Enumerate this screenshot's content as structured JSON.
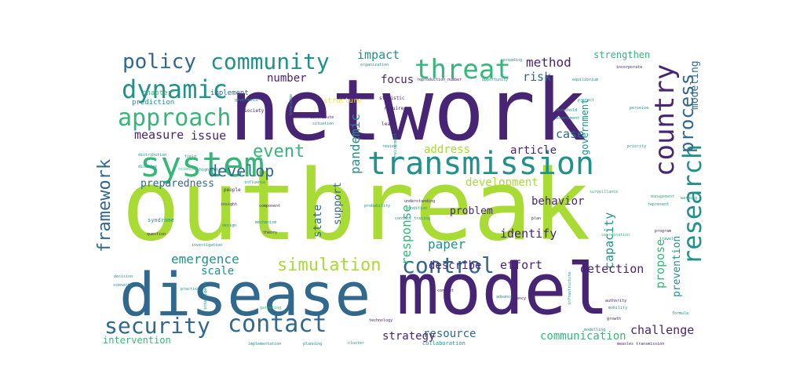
{
  "palette": {
    "dark_purple": "#482475",
    "blue": "#31688e",
    "teal": "#21918c",
    "green": "#35b779",
    "lime": "#a8db34",
    "yellow": "#fde725",
    "indigo": "#443a83"
  },
  "words": [
    {
      "text": "outbreak",
      "color": "lime",
      "level": 1.0
    },
    {
      "text": "network",
      "color": "dark_purple",
      "level": 0.92
    },
    {
      "text": "model",
      "color": "dark_purple",
      "level": 0.88
    },
    {
      "text": "disease",
      "color": "blue",
      "level": 0.8
    },
    {
      "text": "system",
      "color": "green",
      "level": 0.42
    },
    {
      "text": "transmission",
      "color": "teal",
      "level": 0.4
    },
    {
      "text": "threat",
      "color": "green",
      "level": 0.35
    },
    {
      "text": "country",
      "color": "dark_purple",
      "level": 0.34
    },
    {
      "text": "dynamic",
      "color": "teal",
      "level": 0.3
    },
    {
      "text": "community",
      "color": "teal",
      "level": 0.28
    },
    {
      "text": "approach",
      "color": "green",
      "level": 0.27
    },
    {
      "text": "policy",
      "color": "blue",
      "level": 0.25
    },
    {
      "text": "research",
      "color": "teal",
      "level": 0.27
    },
    {
      "text": "contact",
      "color": "blue",
      "level": 0.26
    },
    {
      "text": "security",
      "color": "blue",
      "level": 0.25
    },
    {
      "text": "control",
      "color": "blue",
      "level": 0.24
    },
    {
      "text": "simulation",
      "color": "lime",
      "level": 0.2
    },
    {
      "text": "framework",
      "color": "blue",
      "level": 0.2
    },
    {
      "text": "process",
      "color": "blue",
      "level": 0.2
    },
    {
      "text": "event",
      "color": "green",
      "level": 0.18
    },
    {
      "text": "develop",
      "color": "blue",
      "level": 0.16
    },
    {
      "text": "pandemic",
      "color": "teal",
      "level": 0.13
    },
    {
      "text": "method",
      "color": "dark_purple",
      "level": 0.13
    },
    {
      "text": "impact",
      "color": "teal",
      "level": 0.12
    },
    {
      "text": "risk",
      "color": "blue",
      "level": 0.13
    },
    {
      "text": "modeling",
      "color": "blue",
      "level": 0.11
    },
    {
      "text": "strengthen",
      "color": "green",
      "level": 0.1
    },
    {
      "text": "number",
      "color": "dark_purple",
      "level": 0.1
    },
    {
      "text": "focus",
      "color": "dark_purple",
      "level": 0.11
    },
    {
      "text": "measure",
      "color": "dark_purple",
      "level": 0.11
    },
    {
      "text": "issue",
      "color": "dark_purple",
      "level": 0.11
    },
    {
      "text": "preparedness",
      "color": "blue",
      "level": 0.1
    },
    {
      "text": "emergence",
      "color": "teal",
      "level": 0.12
    },
    {
      "text": "scale",
      "color": "teal",
      "level": 0.1
    },
    {
      "text": "response",
      "color": "green",
      "level": 0.12
    },
    {
      "text": "paper",
      "color": "teal",
      "level": 0.12
    },
    {
      "text": "describe",
      "color": "dark_purple",
      "level": 0.11
    },
    {
      "text": "state",
      "color": "blue",
      "level": 0.1
    },
    {
      "text": "support",
      "color": "blue",
      "level": 0.09
    },
    {
      "text": "address",
      "color": "lime",
      "level": 0.1
    },
    {
      "text": "development",
      "color": "lime",
      "level": 0.1
    },
    {
      "text": "problem",
      "color": "dark_purple",
      "level": 0.09
    },
    {
      "text": "identify",
      "color": "dark_purple",
      "level": 0.11
    },
    {
      "text": "behavior",
      "color": "dark_purple",
      "level": 0.1
    },
    {
      "text": "capacity",
      "color": "teal",
      "level": 0.11
    },
    {
      "text": "article",
      "color": "dark_purple",
      "level": 0.1
    },
    {
      "text": "case",
      "color": "blue",
      "level": 0.11
    },
    {
      "text": "government",
      "color": "teal",
      "level": 0.09
    },
    {
      "text": "effort",
      "color": "dark_purple",
      "level": 0.12
    },
    {
      "text": "detection",
      "color": "dark_purple",
      "level": 0.12
    },
    {
      "text": "propose",
      "color": "green",
      "level": 0.12
    },
    {
      "text": "prevention",
      "color": "teal",
      "level": 0.1
    },
    {
      "text": "challenge",
      "color": "dark_purple",
      "level": 0.11
    },
    {
      "text": "communication",
      "color": "green",
      "level": 0.1
    },
    {
      "text": "resource",
      "color": "blue",
      "level": 0.1
    },
    {
      "text": "strategy",
      "color": "dark_purple",
      "level": 0.1
    },
    {
      "text": "intervention",
      "color": "green",
      "level": 0.09
    },
    {
      "text": "chapter",
      "color": "green",
      "level": 0.06
    },
    {
      "text": "implement",
      "color": "blue",
      "level": 0.06
    },
    {
      "text": "prediction",
      "color": "teal",
      "level": 0.06
    },
    {
      "text": "structure",
      "color": "yellow",
      "level": 0.05
    },
    {
      "text": "society",
      "color": "dark_purple",
      "level": 0.04
    },
    {
      "text": "knowledge",
      "color": "teal",
      "level": 0.04
    },
    {
      "text": "statistic",
      "color": "dark_purple",
      "level": 0.04
    },
    {
      "text": "require",
      "color": "dark_purple",
      "level": 0.04
    },
    {
      "text": "lead",
      "color": "dark_purple",
      "level": 0.04
    },
    {
      "text": "review",
      "color": "teal",
      "level": 0.04
    },
    {
      "text": "understanding",
      "color": "dark_purple",
      "level": 0.04
    },
    {
      "text": "probability",
      "color": "teal",
      "level": 0.04
    },
    {
      "text": "condition",
      "color": "teal",
      "level": 0.04
    },
    {
      "text": "organization",
      "color": "teal",
      "level": 0.04
    },
    {
      "text": "spreading",
      "color": "teal",
      "level": 0.04
    },
    {
      "text": "reproduction_number",
      "color": "dark_purple",
      "level": 0.04
    },
    {
      "text": "opportunity",
      "color": "teal",
      "level": 0.04
    },
    {
      "text": "equilibrium",
      "color": "teal",
      "level": 0.04
    },
    {
      "text": "incorporate",
      "color": "dark_purple",
      "level": 0.04
    },
    {
      "text": "project",
      "color": "teal",
      "level": 0.04
    },
    {
      "text": "threshold",
      "color": "teal",
      "level": 0.04
    },
    {
      "text": "assessment",
      "color": "teal",
      "level": 0.04
    },
    {
      "text": "perceive",
      "color": "teal",
      "level": 0.04
    },
    {
      "text": "priority",
      "color": "teal",
      "level": 0.04
    },
    {
      "text": "surveillance",
      "color": "green",
      "level": 0.04
    },
    {
      "text": "management",
      "color": "green",
      "level": 0.04
    },
    {
      "text": "warning",
      "color": "teal",
      "level": 0.04
    },
    {
      "text": "represent",
      "color": "teal",
      "level": 0.04
    },
    {
      "text": "program",
      "color": "dark_purple",
      "level": 0.04
    },
    {
      "text": "travel",
      "color": "teal",
      "level": 0.04
    },
    {
      "text": "coordination",
      "color": "green",
      "level": 0.04
    },
    {
      "text": "plan",
      "color": "dark_purple",
      "level": 0.04
    },
    {
      "text": "authority",
      "color": "dark_purple",
      "level": 0.04
    },
    {
      "text": "mobility",
      "color": "teal",
      "level": 0.04
    },
    {
      "text": "growth",
      "color": "dark_purple",
      "level": 0.04
    },
    {
      "text": "modelling",
      "color": "teal",
      "level": 0.04
    },
    {
      "text": "formula",
      "color": "teal",
      "level": 0.04
    },
    {
      "text": "agency",
      "color": "dark_purple",
      "level": 0.04
    },
    {
      "text": "collaboration",
      "color": "teal",
      "level": 0.05
    },
    {
      "text": "technology",
      "color": "dark_purple",
      "level": 0.04
    },
    {
      "text": "planning",
      "color": "teal",
      "level": 0.04
    },
    {
      "text": "implementation",
      "color": "teal",
      "level": 0.04
    },
    {
      "text": "people",
      "color": "dark_purple",
      "level": 0.05
    },
    {
      "text": "insight",
      "color": "dark_purple",
      "level": 0.04
    },
    {
      "text": "syndrome",
      "color": "teal",
      "level": 0.05
    },
    {
      "text": "question",
      "color": "dark_purple",
      "level": 0.04
    },
    {
      "text": "theory",
      "color": "dark_purple",
      "level": 0.04
    },
    {
      "text": "mechanism",
      "color": "teal",
      "level": 0.04
    },
    {
      "text": "component",
      "color": "dark_purple",
      "level": 0.04
    },
    {
      "text": "investigation",
      "color": "teal",
      "level": 0.04
    },
    {
      "text": "design",
      "color": "teal",
      "level": 0.04
    },
    {
      "text": "highlight",
      "color": "teal",
      "level": 0.04
    },
    {
      "text": "influence",
      "color": "teal",
      "level": 0.04
    },
    {
      "text": "science",
      "color": "green",
      "level": 0.04
    },
    {
      "text": "disaster",
      "color": "teal",
      "level": 0.04
    },
    {
      "text": "distribution",
      "color": "teal",
      "level": 0.04
    },
    {
      "text": "governance",
      "color": "teal",
      "level": 0.04
    },
    {
      "text": "field",
      "color": "teal",
      "level": 0.04
    },
    {
      "text": "decision",
      "color": "teal",
      "level": 0.04
    },
    {
      "text": "scenario",
      "color": "teal",
      "level": 0.04
    },
    {
      "text": "practice",
      "color": "teal",
      "level": 0.04
    },
    {
      "text": "build",
      "color": "teal",
      "level": 0.04
    },
    {
      "text": "intelligence",
      "color": "teal",
      "level": 0.04
    },
    {
      "text": "gathering",
      "color": "green",
      "level": 0.04
    },
    {
      "text": "contact_tracing",
      "color": "teal",
      "level": 0.04
    },
    {
      "text": "contribute",
      "color": "dark_purple",
      "level": 0.04
    },
    {
      "text": "situation",
      "color": "teal",
      "level": 0.04
    },
    {
      "text": "environment",
      "color": "teal",
      "level": 0.04
    },
    {
      "text": "concept",
      "color": "dark_purple",
      "level": 0.04
    },
    {
      "text": "advance",
      "color": "teal",
      "level": 0.04
    },
    {
      "text": "infrastructure",
      "color": "teal",
      "level": 0.04
    },
    {
      "text": "cluster",
      "color": "teal",
      "level": 0.04
    },
    {
      "text": "measles transmission",
      "color": "dark_purple",
      "level": 0.03
    }
  ]
}
